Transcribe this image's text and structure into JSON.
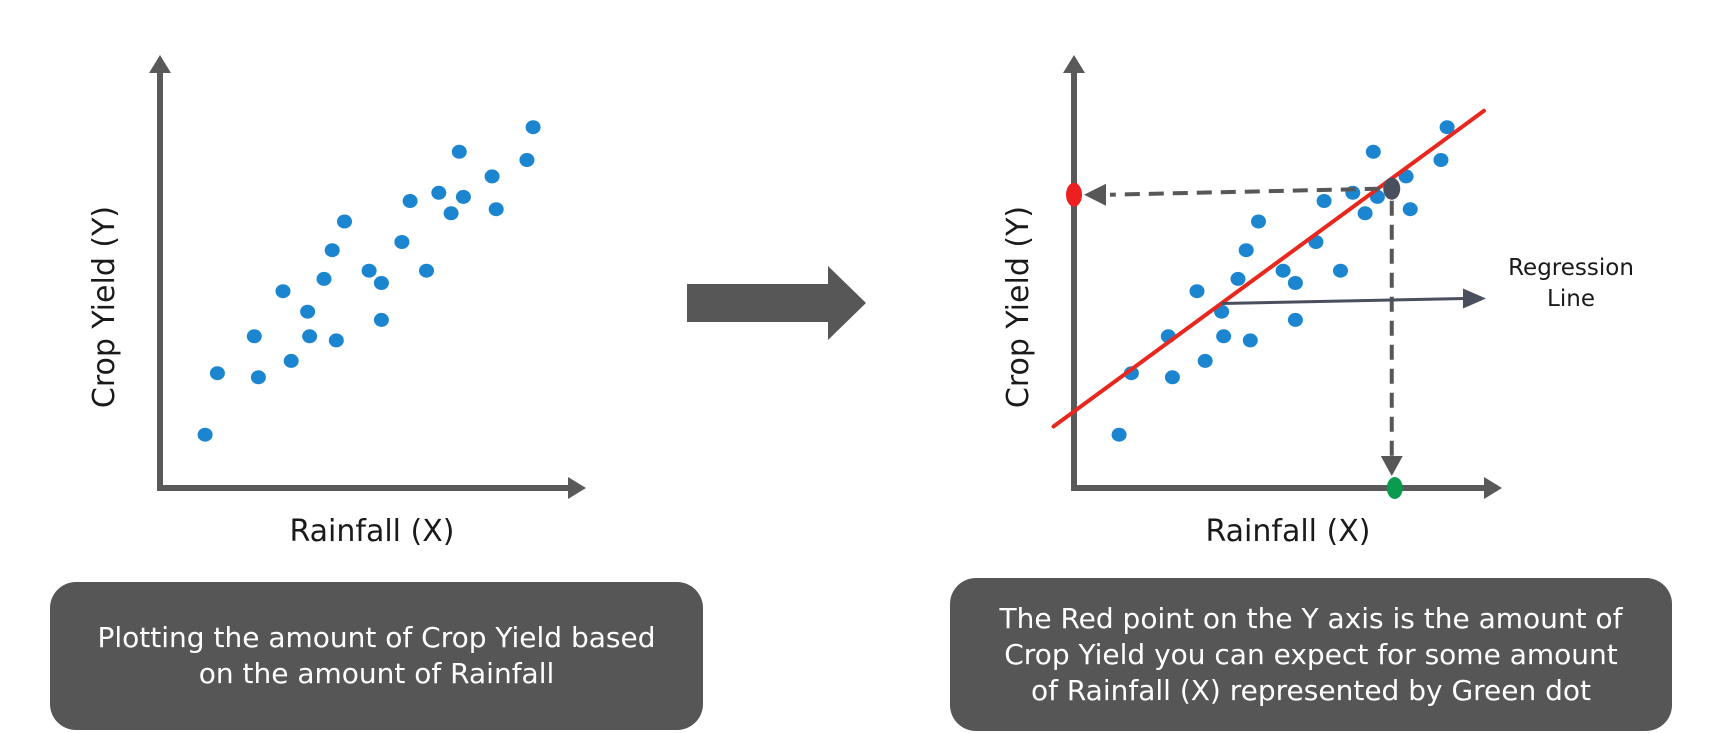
{
  "chart_data": [
    {
      "type": "scatter",
      "xlabel": "Rainfall (X)",
      "ylabel": "Crop Yield (Y)",
      "xlim": [
        0,
        10
      ],
      "ylim": [
        0,
        10
      ],
      "grid": false,
      "points": [
        {
          "x": 1.1,
          "y": 1.3
        },
        {
          "x": 1.4,
          "y": 2.8
        },
        {
          "x": 2.3,
          "y": 3.7
        },
        {
          "x": 2.4,
          "y": 2.7
        },
        {
          "x": 3.0,
          "y": 4.8
        },
        {
          "x": 3.2,
          "y": 3.1
        },
        {
          "x": 3.6,
          "y": 4.3
        },
        {
          "x": 3.65,
          "y": 3.7
        },
        {
          "x": 4.0,
          "y": 5.1
        },
        {
          "x": 4.2,
          "y": 5.8
        },
        {
          "x": 4.3,
          "y": 3.6
        },
        {
          "x": 4.5,
          "y": 6.5
        },
        {
          "x": 5.1,
          "y": 5.3
        },
        {
          "x": 5.4,
          "y": 5.0
        },
        {
          "x": 5.4,
          "y": 4.1
        },
        {
          "x": 5.9,
          "y": 6.0
        },
        {
          "x": 6.1,
          "y": 7.0
        },
        {
          "x": 6.5,
          "y": 5.3
        },
        {
          "x": 6.8,
          "y": 7.2
        },
        {
          "x": 7.1,
          "y": 6.7
        },
        {
          "x": 7.3,
          "y": 8.2
        },
        {
          "x": 7.4,
          "y": 7.1
        },
        {
          "x": 8.1,
          "y": 7.6
        },
        {
          "x": 8.2,
          "y": 6.8
        },
        {
          "x": 8.95,
          "y": 8.0
        },
        {
          "x": 9.1,
          "y": 8.8
        }
      ]
    },
    {
      "type": "scatter",
      "xlabel": "Rainfall (X)",
      "ylabel": "Crop Yield (Y)",
      "xlim": [
        0,
        10
      ],
      "ylim": [
        0,
        10
      ],
      "grid": false,
      "points": [
        {
          "x": 1.1,
          "y": 1.3
        },
        {
          "x": 1.4,
          "y": 2.8
        },
        {
          "x": 2.3,
          "y": 3.7
        },
        {
          "x": 2.4,
          "y": 2.7
        },
        {
          "x": 3.0,
          "y": 4.8
        },
        {
          "x": 3.2,
          "y": 3.1
        },
        {
          "x": 3.6,
          "y": 4.3
        },
        {
          "x": 3.65,
          "y": 3.7
        },
        {
          "x": 4.0,
          "y": 5.1
        },
        {
          "x": 4.2,
          "y": 5.8
        },
        {
          "x": 4.3,
          "y": 3.6
        },
        {
          "x": 4.5,
          "y": 6.5
        },
        {
          "x": 5.1,
          "y": 5.3
        },
        {
          "x": 5.4,
          "y": 5.0
        },
        {
          "x": 5.4,
          "y": 4.1
        },
        {
          "x": 5.9,
          "y": 6.0
        },
        {
          "x": 6.1,
          "y": 7.0
        },
        {
          "x": 6.5,
          "y": 5.3
        },
        {
          "x": 6.8,
          "y": 7.2
        },
        {
          "x": 7.1,
          "y": 6.7
        },
        {
          "x": 7.3,
          "y": 8.2
        },
        {
          "x": 7.4,
          "y": 7.1
        },
        {
          "x": 8.1,
          "y": 7.6
        },
        {
          "x": 8.2,
          "y": 6.8
        },
        {
          "x": 8.95,
          "y": 8.0
        },
        {
          "x": 9.1,
          "y": 8.8
        }
      ],
      "regression_line": {
        "label": "Regression Line",
        "start": {
          "x": -0.5,
          "y": 1.5
        },
        "end": {
          "x": 10,
          "y": 9.2
        },
        "color": "#e8281f"
      },
      "prediction": {
        "x": 7.75,
        "y": 7.3,
        "point_color": "#4a4f5e",
        "x_marker_color": "#0a9b50",
        "y_marker_color": "#ee1f1f"
      },
      "annotation_anchor": {
        "x": 3.6,
        "y": 4.5
      }
    }
  ],
  "colors": {
    "point": "#1b86cf",
    "axis": "#595959",
    "arrow": "#575757",
    "caption_background": "#565656",
    "caption_text": "#ffffff"
  },
  "annotation": {
    "line1": "Regression",
    "line2": "Line"
  },
  "captions": {
    "left": {
      "line1": "Plotting the amount of Crop Yield based",
      "line2": "on the amount of Rainfall"
    },
    "right": {
      "line1": "The Red point on the Y axis is the amount of",
      "line2": "Crop Yield you can expect for some amount",
      "line3": "of Rainfall (X) represented by Green dot"
    }
  }
}
